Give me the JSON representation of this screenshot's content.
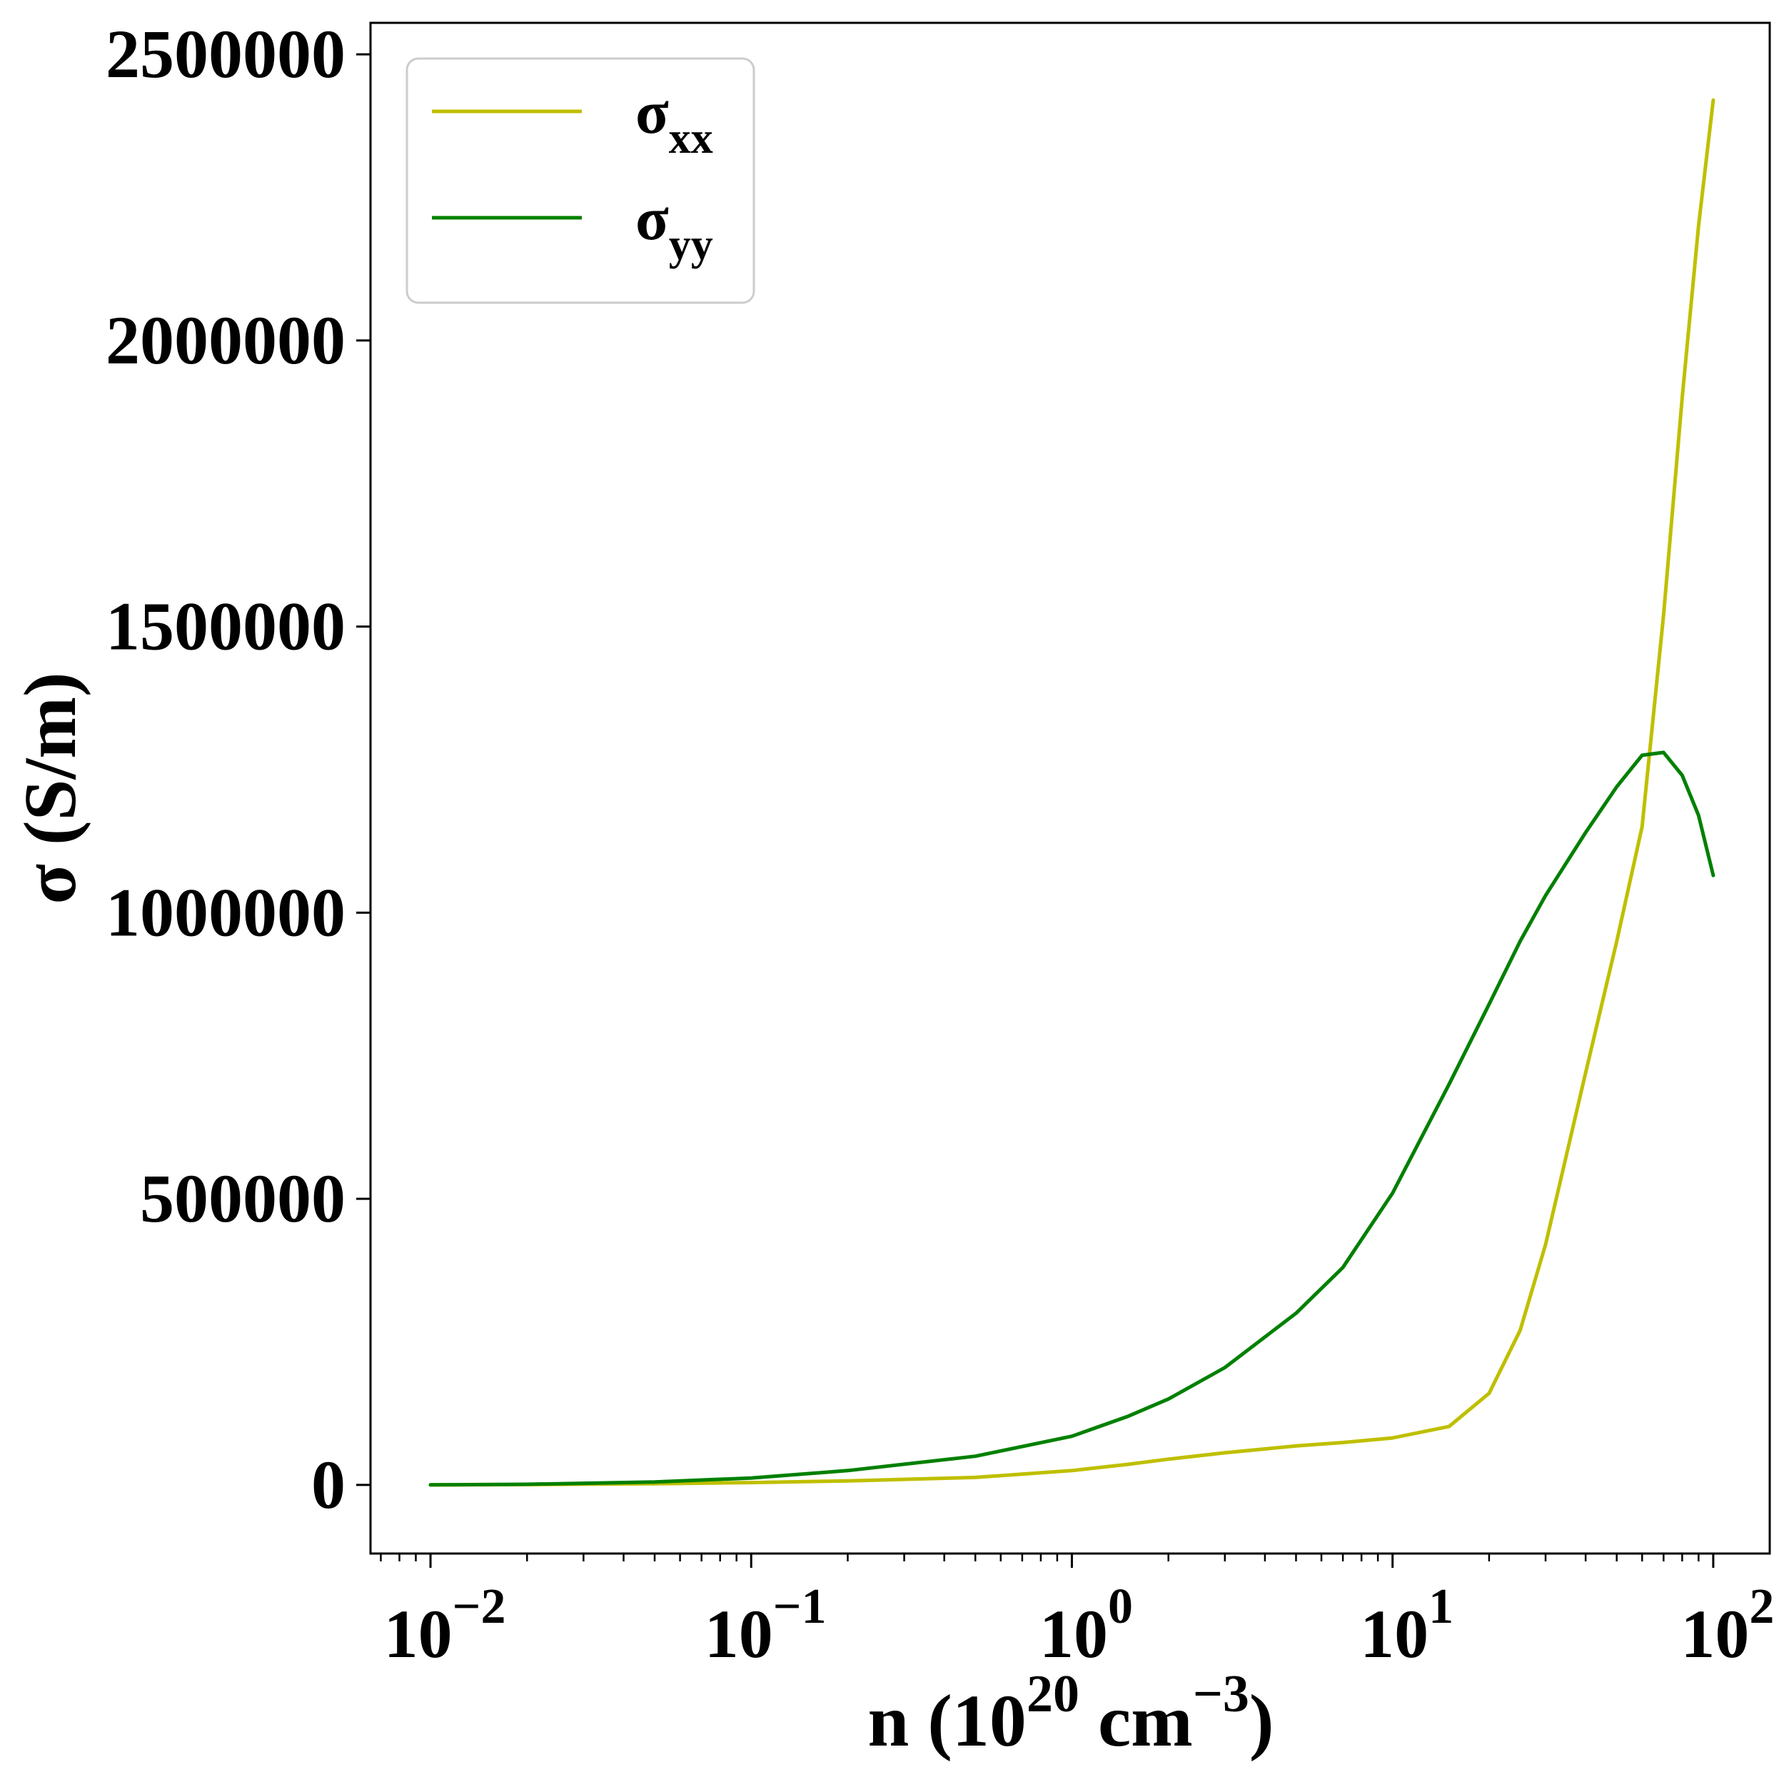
{
  "chart_data": {
    "type": "line",
    "title": "",
    "xlabel": {
      "main": "n (10",
      "exp": "20",
      "mid": " cm",
      "exp2": "−3",
      "end": ")"
    },
    "ylabel": "σ (S/m)",
    "xscale": "log",
    "xlim": [
      0.0065,
      150
    ],
    "ylim": [
      -120000,
      2555000
    ],
    "xticks": [
      {
        "value": 0.01,
        "base": "10",
        "exp": "−2"
      },
      {
        "value": 0.1,
        "base": "10",
        "exp": "−1"
      },
      {
        "value": 1,
        "base": "10",
        "exp": "0"
      },
      {
        "value": 10,
        "base": "10",
        "exp": "1"
      },
      {
        "value": 100,
        "base": "10",
        "exp": "2"
      }
    ],
    "yticks": [
      {
        "value": 0,
        "label": "0"
      },
      {
        "value": 500000,
        "label": "500000"
      },
      {
        "value": 1000000,
        "label": "1000000"
      },
      {
        "value": 1500000,
        "label": "1500000"
      },
      {
        "value": 2000000,
        "label": "2000000"
      },
      {
        "value": 2500000,
        "label": "2500000"
      }
    ],
    "grid": false,
    "legend": {
      "placement": "top-left",
      "entries": [
        {
          "base": "σ",
          "sub": "xx"
        },
        {
          "base": "σ",
          "sub": "yy"
        }
      ]
    },
    "series": [
      {
        "name": "σxx",
        "color": "#bfbf00",
        "x": [
          0.01,
          0.02,
          0.05,
          0.1,
          0.2,
          0.5,
          1,
          1.5,
          2,
          3,
          5,
          7,
          10,
          15,
          20,
          25,
          30,
          40,
          50,
          60,
          70,
          80,
          90,
          100
        ],
        "y": [
          0,
          500,
          2000,
          4000,
          7000,
          13000,
          25000,
          36000,
          45000,
          56000,
          68000,
          74000,
          82000,
          102000,
          160000,
          270000,
          420000,
          720000,
          950000,
          1150000,
          1520000,
          1900000,
          2200000,
          2420000
        ]
      },
      {
        "name": "σyy",
        "color": "#008000",
        "x": [
          0.01,
          0.02,
          0.05,
          0.1,
          0.2,
          0.5,
          1,
          1.5,
          2,
          3,
          5,
          7,
          10,
          15,
          20,
          25,
          30,
          40,
          50,
          60,
          70,
          80,
          90,
          100
        ],
        "y": [
          0,
          1000,
          5000,
          12000,
          25000,
          50000,
          85000,
          120000,
          150000,
          205000,
          300000,
          380000,
          510000,
          700000,
          840000,
          950000,
          1030000,
          1140000,
          1220000,
          1275000,
          1280000,
          1240000,
          1170000,
          1065000
        ]
      }
    ]
  }
}
